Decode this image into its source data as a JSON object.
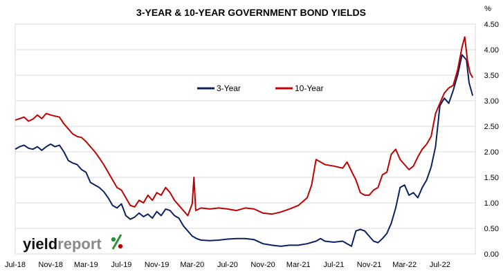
{
  "chart_data": {
    "type": "line",
    "title": "3-YEAR & 10-YEAR GOVERNMENT BOND YIELDS",
    "ylabel_unit": "%",
    "ylim": [
      0,
      4.5
    ],
    "y_ticks": [
      "0.00",
      "0.50",
      "1.00",
      "1.50",
      "2.00",
      "2.50",
      "3.00",
      "3.50",
      "4.00",
      "4.50"
    ],
    "x_ticks": [
      "Jul-18",
      "Nov-18",
      "Mar-19",
      "Jul-19",
      "Nov-19",
      "Mar-20",
      "Jul-20",
      "Nov-20",
      "Mar-21",
      "Jul-21",
      "Nov-21",
      "Mar-22",
      "Jul-22"
    ],
    "x_range_months": [
      0,
      49
    ],
    "legend_position": "top-right",
    "grid": "horizontal",
    "series": [
      {
        "name": "3-Year",
        "color": "#0b1f63",
        "points": [
          [
            0,
            2.05
          ],
          [
            0.5,
            2.1
          ],
          [
            1,
            2.13
          ],
          [
            1.5,
            2.07
          ],
          [
            2,
            2.05
          ],
          [
            2.5,
            2.1
          ],
          [
            3,
            2.03
          ],
          [
            3.5,
            2.1
          ],
          [
            4,
            2.15
          ],
          [
            4.5,
            2.1
          ],
          [
            5,
            2.13
          ],
          [
            5.5,
            2.0
          ],
          [
            6,
            1.83
          ],
          [
            6.5,
            1.78
          ],
          [
            7,
            1.75
          ],
          [
            7.5,
            1.65
          ],
          [
            8,
            1.6
          ],
          [
            8.5,
            1.4
          ],
          [
            9,
            1.35
          ],
          [
            9.5,
            1.3
          ],
          [
            10,
            1.22
          ],
          [
            10.5,
            1.1
          ],
          [
            11,
            0.95
          ],
          [
            11.5,
            0.9
          ],
          [
            12,
            0.98
          ],
          [
            12.5,
            0.75
          ],
          [
            13,
            0.68
          ],
          [
            13.5,
            0.72
          ],
          [
            14,
            0.8
          ],
          [
            14.5,
            0.73
          ],
          [
            15,
            0.78
          ],
          [
            15.5,
            0.7
          ],
          [
            16,
            0.83
          ],
          [
            16.5,
            0.75
          ],
          [
            17,
            0.88
          ],
          [
            17.5,
            0.85
          ],
          [
            18,
            0.75
          ],
          [
            18.5,
            0.7
          ],
          [
            19,
            0.55
          ],
          [
            19.5,
            0.45
          ],
          [
            20,
            0.35
          ],
          [
            20.5,
            0.3
          ],
          [
            21,
            0.27
          ],
          [
            22,
            0.26
          ],
          [
            23,
            0.27
          ],
          [
            24,
            0.29
          ],
          [
            25,
            0.3
          ],
          [
            26,
            0.3
          ],
          [
            27,
            0.28
          ],
          [
            28,
            0.2
          ],
          [
            29,
            0.17
          ],
          [
            30,
            0.15
          ],
          [
            31,
            0.17
          ],
          [
            32,
            0.17
          ],
          [
            33,
            0.2
          ],
          [
            34,
            0.25
          ],
          [
            34.5,
            0.3
          ],
          [
            35,
            0.25
          ],
          [
            36,
            0.23
          ],
          [
            37,
            0.25
          ],
          [
            37.5,
            0.2
          ],
          [
            38,
            0.15
          ],
          [
            38.5,
            0.45
          ],
          [
            39,
            0.48
          ],
          [
            39.5,
            0.45
          ],
          [
            40,
            0.35
          ],
          [
            40.5,
            0.25
          ],
          [
            41,
            0.22
          ],
          [
            41.5,
            0.3
          ],
          [
            42,
            0.4
          ],
          [
            42.5,
            0.6
          ],
          [
            43,
            0.9
          ],
          [
            43.5,
            1.3
          ],
          [
            44,
            1.35
          ],
          [
            44.5,
            1.15
          ],
          [
            45,
            1.2
          ],
          [
            45.5,
            1.1
          ],
          [
            46,
            1.3
          ],
          [
            46.5,
            1.45
          ],
          [
            47,
            1.7
          ],
          [
            47.5,
            2.1
          ],
          [
            48,
            2.9
          ],
          [
            48.5,
            3.05
          ],
          [
            49,
            2.95
          ],
          [
            49.5,
            3.2
          ],
          [
            50,
            3.5
          ],
          [
            50.5,
            3.9
          ],
          [
            51,
            3.8
          ],
          [
            51.3,
            3.35
          ],
          [
            51.7,
            3.1
          ]
        ]
      },
      {
        "name": "10-Year",
        "color": "#c00000",
        "points": [
          [
            0,
            2.62
          ],
          [
            0.5,
            2.65
          ],
          [
            1,
            2.68
          ],
          [
            1.5,
            2.6
          ],
          [
            2,
            2.64
          ],
          [
            2.5,
            2.72
          ],
          [
            3,
            2.65
          ],
          [
            3.5,
            2.75
          ],
          [
            4,
            2.72
          ],
          [
            4.5,
            2.7
          ],
          [
            5,
            2.68
          ],
          [
            5.5,
            2.55
          ],
          [
            6,
            2.45
          ],
          [
            6.5,
            2.35
          ],
          [
            7,
            2.3
          ],
          [
            7.5,
            2.28
          ],
          [
            8,
            2.2
          ],
          [
            8.5,
            2.1
          ],
          [
            9,
            2.0
          ],
          [
            9.5,
            1.88
          ],
          [
            10,
            1.75
          ],
          [
            10.5,
            1.6
          ],
          [
            11,
            1.45
          ],
          [
            11.5,
            1.3
          ],
          [
            12,
            1.25
          ],
          [
            12.5,
            1.1
          ],
          [
            13,
            0.95
          ],
          [
            13.5,
            0.92
          ],
          [
            14,
            1.05
          ],
          [
            14.5,
            1.0
          ],
          [
            15,
            1.15
          ],
          [
            15.5,
            1.05
          ],
          [
            16,
            1.2
          ],
          [
            16.5,
            1.15
          ],
          [
            17,
            1.3
          ],
          [
            17.5,
            1.2
          ],
          [
            18,
            1.05
          ],
          [
            18.5,
            0.95
          ],
          [
            19,
            0.85
          ],
          [
            19.5,
            0.75
          ],
          [
            20,
            0.98
          ],
          [
            20.2,
            1.5
          ],
          [
            20.4,
            0.85
          ],
          [
            21,
            0.9
          ],
          [
            22,
            0.88
          ],
          [
            23,
            0.9
          ],
          [
            24,
            0.88
          ],
          [
            25,
            0.85
          ],
          [
            26,
            0.9
          ],
          [
            27,
            0.88
          ],
          [
            28,
            0.8
          ],
          [
            29,
            0.78
          ],
          [
            30,
            0.82
          ],
          [
            31,
            0.88
          ],
          [
            32,
            0.95
          ],
          [
            33,
            1.1
          ],
          [
            33.5,
            1.35
          ],
          [
            34,
            1.85
          ],
          [
            34.5,
            1.8
          ],
          [
            35,
            1.75
          ],
          [
            36,
            1.72
          ],
          [
            37,
            1.68
          ],
          [
            37.5,
            1.8
          ],
          [
            38,
            1.62
          ],
          [
            38.5,
            1.45
          ],
          [
            39,
            1.2
          ],
          [
            39.5,
            1.15
          ],
          [
            40,
            1.15
          ],
          [
            40.5,
            1.25
          ],
          [
            41,
            1.3
          ],
          [
            41.5,
            1.55
          ],
          [
            42,
            1.6
          ],
          [
            42.5,
            1.95
          ],
          [
            43,
            2.05
          ],
          [
            43.5,
            1.85
          ],
          [
            44,
            1.75
          ],
          [
            44.5,
            1.65
          ],
          [
            45,
            1.72
          ],
          [
            45.5,
            1.9
          ],
          [
            46,
            2.05
          ],
          [
            46.5,
            2.15
          ],
          [
            47,
            2.3
          ],
          [
            47.5,
            2.75
          ],
          [
            48,
            2.95
          ],
          [
            48.5,
            3.15
          ],
          [
            49,
            3.25
          ],
          [
            49.5,
            3.3
          ],
          [
            50,
            3.6
          ],
          [
            50.5,
            4.05
          ],
          [
            50.8,
            4.25
          ],
          [
            51.1,
            3.8
          ],
          [
            51.4,
            3.55
          ],
          [
            51.7,
            3.45
          ]
        ]
      }
    ]
  },
  "logo": {
    "text_a": "yield",
    "text_b": "report",
    "symbol": "%",
    "color_dark": "#111111",
    "color_grey": "#8a8a8a",
    "color_green": "#2c8f3c",
    "color_red": "#c00000"
  }
}
